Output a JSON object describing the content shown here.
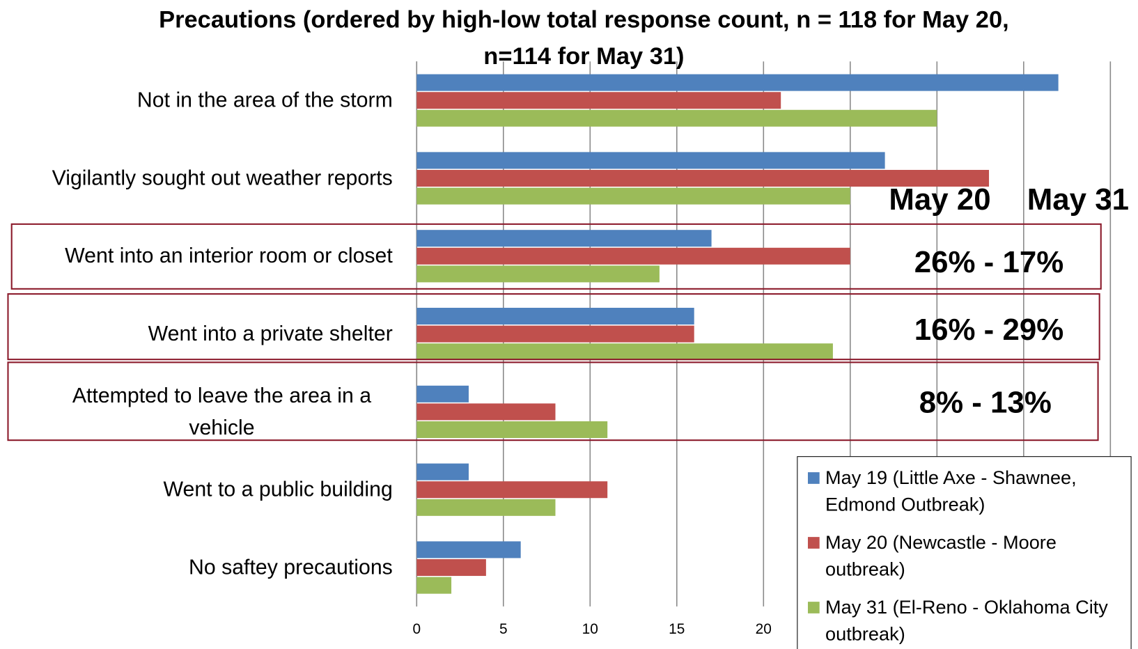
{
  "chart_data": {
    "type": "bar",
    "orientation": "horizontal",
    "title": "Precautions (ordered by high-low total response count, n = 118 for May 20, n=114 for May 31)",
    "categories": [
      "Not in the area of the storm",
      "Vigilantly sought out weather reports",
      "Went into an interior room or closet",
      "Went into a private shelter",
      "Attempted to leave the area in a vehicle",
      "Went to a public building",
      "No saftey precautions"
    ],
    "series": [
      {
        "name": "May 19 (Little Axe - Shawnee, Edmond Outbreak)",
        "color": "#4f81bd",
        "values": [
          37,
          27,
          17,
          16,
          3,
          3,
          6
        ]
      },
      {
        "name": "May 20 (Newcastle - Moore outbreak)",
        "color": "#c0504d",
        "values": [
          21,
          33,
          25,
          16,
          8,
          11,
          4
        ]
      },
      {
        "name": "May 31 (El-Reno - Oklahoma City outbreak)",
        "color": "#9bbb59",
        "values": [
          30,
          25,
          14,
          24,
          11,
          8,
          2
        ]
      }
    ],
    "xlim": [
      0,
      40
    ],
    "xticks": [
      0,
      5,
      10,
      15,
      20,
      25,
      30,
      35,
      40
    ],
    "grid": true,
    "legend": "lower right",
    "annotations": [
      "May 20",
      "May 31",
      "26% - 17%",
      "16% - 29%",
      "8% - 13%"
    ]
  }
}
